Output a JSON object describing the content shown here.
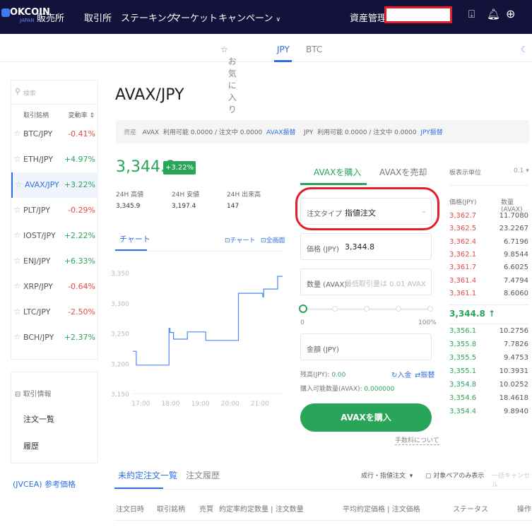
{
  "header": {
    "logo": "OKCOIN",
    "logo_sub": "JAPAN",
    "nav": [
      "販売所",
      "取引所",
      "ステーキング",
      "マーケット",
      "キャンペーン"
    ],
    "asset": "資産管理",
    "icons": [
      "download-icon",
      "bell-icon",
      "globe-icon"
    ]
  },
  "subnav": {
    "favorites": "お気に入り",
    "jpy": "JPY",
    "btc": "BTC"
  },
  "sidebar": {
    "search_placeholder": "検索",
    "col_pair": "取引銘柄",
    "col_change": "変動率",
    "pairs": [
      {
        "name": "BTC/JPY",
        "change": "-0.41%"
      },
      {
        "name": "ETH/JPY",
        "change": "+4.97%"
      },
      {
        "name": "AVAX/JPY",
        "change": "+3.22%"
      },
      {
        "name": "PLT/JPY",
        "change": "-0.29%"
      },
      {
        "name": "IOST/JPY",
        "change": "+2.22%"
      },
      {
        "name": "ENJ/JPY",
        "change": "+6.33%"
      },
      {
        "name": "XRP/JPY",
        "change": "-0.64%"
      },
      {
        "name": "LTC/JPY",
        "change": "-2.50%"
      },
      {
        "name": "BCH/JPY",
        "change": "+2.37%"
      }
    ],
    "info_title": "取引情報",
    "orders": "注文一覧",
    "history": "履歴",
    "ref_price": "(JVCEA) 参考価格"
  },
  "main": {
    "title": "AVAX/JPY",
    "assets": {
      "label": "資産",
      "avax": "AVAX",
      "avax_text": "利用可能 0.0000 / 注文中 0.0000",
      "avax_link": "AVAX振替",
      "jpy": "JPY",
      "jpy_text": "利用可能 0.0000 / 注文中 0.0000",
      "jpy_link": "JPY振替"
    },
    "price": "3,344.8",
    "change": "+3.22%",
    "high_label": "24H 高値",
    "high": "3,345.9",
    "low_label": "24H 安値",
    "low": "3,197.4",
    "vol_label": "24H 出来高",
    "vol": "147",
    "chart_tab": "チャート",
    "chart_btn": "チャート",
    "full_btn": "全画面"
  },
  "chart_data": {
    "type": "line",
    "x": [
      "16:48",
      "16:55",
      "18:00",
      "18:01",
      "18:03",
      "18:10",
      "18:38",
      "19:12",
      "19:15",
      "20:20",
      "20:21",
      "21:10",
      "21:12",
      "21:40",
      "21:50"
    ],
    "values": [
      3220,
      3197,
      3197,
      3258,
      3251,
      3240,
      3252,
      3252,
      3238,
      3238,
      3316,
      3310,
      3323,
      3344,
      3344
    ],
    "yticks": [
      "3,350",
      "3,300",
      "3,250",
      "3,200",
      "3,150"
    ],
    "xticks": [
      "17:00",
      "18:00",
      "19:00",
      "20:00",
      "21:00"
    ],
    "ylim": [
      3150,
      3350
    ],
    "color": "#4a8af0"
  },
  "order": {
    "buy_tab": "AVAXを購入",
    "sell_tab": "AVAXを売却",
    "type_label": "注文タイプ",
    "type_value": "指値注文",
    "price_label": "価格 (JPY)",
    "price_value": "3,344.8",
    "qty_label": "数量 (AVAX)",
    "qty_placeholder": "最低取引量は 0.01 AVAX",
    "slider_min": "0",
    "slider_max": "100%",
    "slider_value": 0,
    "amount_label": "金額 (JPY)",
    "balance_label": "残高(JPY): ",
    "balance": "0.00",
    "avail_label": "購入可能数量(AVAX): ",
    "avail": "0.000000",
    "deposit": "入金",
    "transfer": "振替",
    "buy_button": "AVAXを購入",
    "fee": "手数料について"
  },
  "orderbook": {
    "unit_label": "板表示単位",
    "unit": "0.1",
    "col_price": "価格(JPY)",
    "col_qty": "数量(AVAX)",
    "asks": [
      [
        "3,362.7",
        "11.7080"
      ],
      [
        "3,362.5",
        "23.2267"
      ],
      [
        "3,362.4",
        "6.7196"
      ],
      [
        "3,362.1",
        "9.8544"
      ],
      [
        "3,361.7",
        "6.6025"
      ],
      [
        "3,361.4",
        "7.4794"
      ],
      [
        "3,361.1",
        "8.6060"
      ]
    ],
    "last": "3,344.8 ↑",
    "bids": [
      [
        "3,356.1",
        "10.2756"
      ],
      [
        "3,355.8",
        "7.7826"
      ],
      [
        "3,355.5",
        "9.4753"
      ],
      [
        "3,355.1",
        "10.3931"
      ],
      [
        "3,354.8",
        "10.0252"
      ],
      [
        "3,354.6",
        "18.4618"
      ],
      [
        "3,354.4",
        "9.8940"
      ]
    ]
  },
  "orders": {
    "tab_open": "未約定注文一覧",
    "tab_history": "注文履歴",
    "filter": "成行・指値注文",
    "only_pair": "対象ペアのみ表示",
    "cancel_all": "一括キャンセル",
    "columns": [
      "注文日時",
      "取引銘柄",
      "売買",
      "約定率",
      "約定数量 | 注文数量",
      "平均約定価格 | 注文価格",
      "ステータス",
      "操作"
    ]
  },
  "colors": {
    "header": "#12123a",
    "green": "#29a55a",
    "red": "#e04a4a",
    "blue": "#2f6fe0"
  }
}
